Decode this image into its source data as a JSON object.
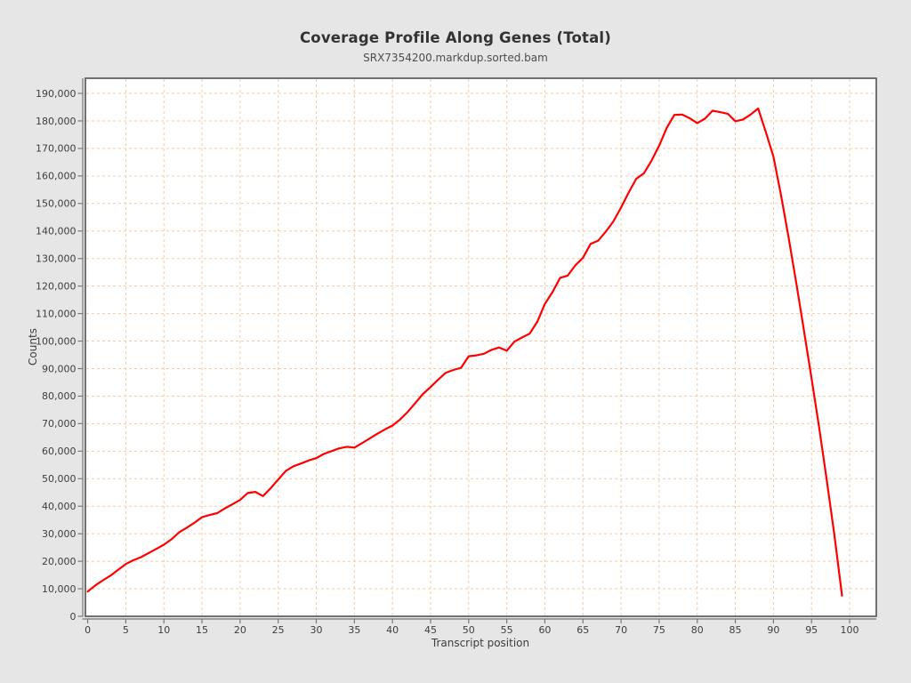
{
  "page": {
    "title": "Coverage Profile Along Genes (Total)",
    "subtitle": "SRX7354200.markdup.sorted.bam"
  },
  "colors": {
    "page_background": "#e6e6e6",
    "plot_background": "#ffffff",
    "grid_color": "#f7caa2",
    "frame_color": "#565656",
    "axis_color": "#777777",
    "tick_label_color": "#3d3d3d",
    "line_color": "#ff0000"
  },
  "chart_data": {
    "type": "line",
    "title": "Coverage Profile Along Genes (Total)",
    "subtitle": "SRX7354200.markdup.sorted.bam",
    "xlabel": "Transcript position",
    "ylabel": "Counts",
    "grid": "dashed",
    "legend": "none",
    "xlim": [
      -0.3,
      103.5
    ],
    "ylim": [
      0,
      195500
    ],
    "x_ticks": [
      0,
      5,
      10,
      15,
      20,
      25,
      30,
      35,
      40,
      45,
      50,
      55,
      60,
      65,
      70,
      75,
      80,
      85,
      90,
      95,
      100
    ],
    "y_ticks": [
      0,
      10000,
      20000,
      30000,
      40000,
      50000,
      60000,
      70000,
      80000,
      90000,
      100000,
      110000,
      120000,
      130000,
      140000,
      150000,
      160000,
      170000,
      180000,
      190000
    ],
    "series": [
      {
        "name": "SRX7354200.markdup.sorted.bam",
        "x": [
          0,
          1,
          2,
          3,
          4,
          5,
          6,
          7,
          8,
          9,
          10,
          11,
          12,
          13,
          14,
          15,
          16,
          17,
          18,
          19,
          20,
          21,
          22,
          23,
          24,
          25,
          26,
          27,
          28,
          29,
          30,
          31,
          32,
          33,
          34,
          35,
          36,
          37,
          38,
          39,
          40,
          41,
          42,
          43,
          44,
          45,
          46,
          47,
          48,
          49,
          50,
          51,
          52,
          53,
          54,
          55,
          56,
          57,
          58,
          59,
          60,
          61,
          62,
          63,
          64,
          65,
          66,
          67,
          68,
          69,
          70,
          71,
          72,
          73,
          74,
          75,
          76,
          77,
          78,
          79,
          80,
          81,
          82,
          83,
          84,
          85,
          86,
          87,
          88,
          89,
          90,
          91,
          92,
          93,
          94,
          95,
          96,
          97,
          98,
          99
        ],
        "y": [
          9000,
          11200,
          13100,
          14800,
          16900,
          19000,
          20400,
          21500,
          23000,
          24500,
          26000,
          28000,
          30500,
          32200,
          34000,
          36000,
          36800,
          37500,
          39200,
          40700,
          42300,
          44800,
          45200,
          43700,
          46500,
          49700,
          52800,
          54500,
          55500,
          56600,
          57500,
          59000,
          60000,
          61000,
          61600,
          61300,
          62900,
          64600,
          66300,
          67900,
          69300,
          71500,
          74300,
          77500,
          80800,
          83300,
          86000,
          88500,
          89500,
          90300,
          94500,
          94800,
          95400,
          96800,
          97700,
          96500,
          99800,
          101300,
          102700,
          107000,
          113500,
          117800,
          123000,
          123800,
          127500,
          130300,
          135300,
          136500,
          139800,
          143500,
          148500,
          154000,
          159000,
          161000,
          165500,
          171000,
          177500,
          182200,
          182300,
          181000,
          179200,
          180800,
          183700,
          183200,
          182600,
          179900,
          180500,
          182300,
          184500,
          176000,
          167000,
          153000,
          137500,
          121000,
          104000,
          86500,
          68500,
          49500,
          29500,
          7500
        ]
      }
    ]
  }
}
